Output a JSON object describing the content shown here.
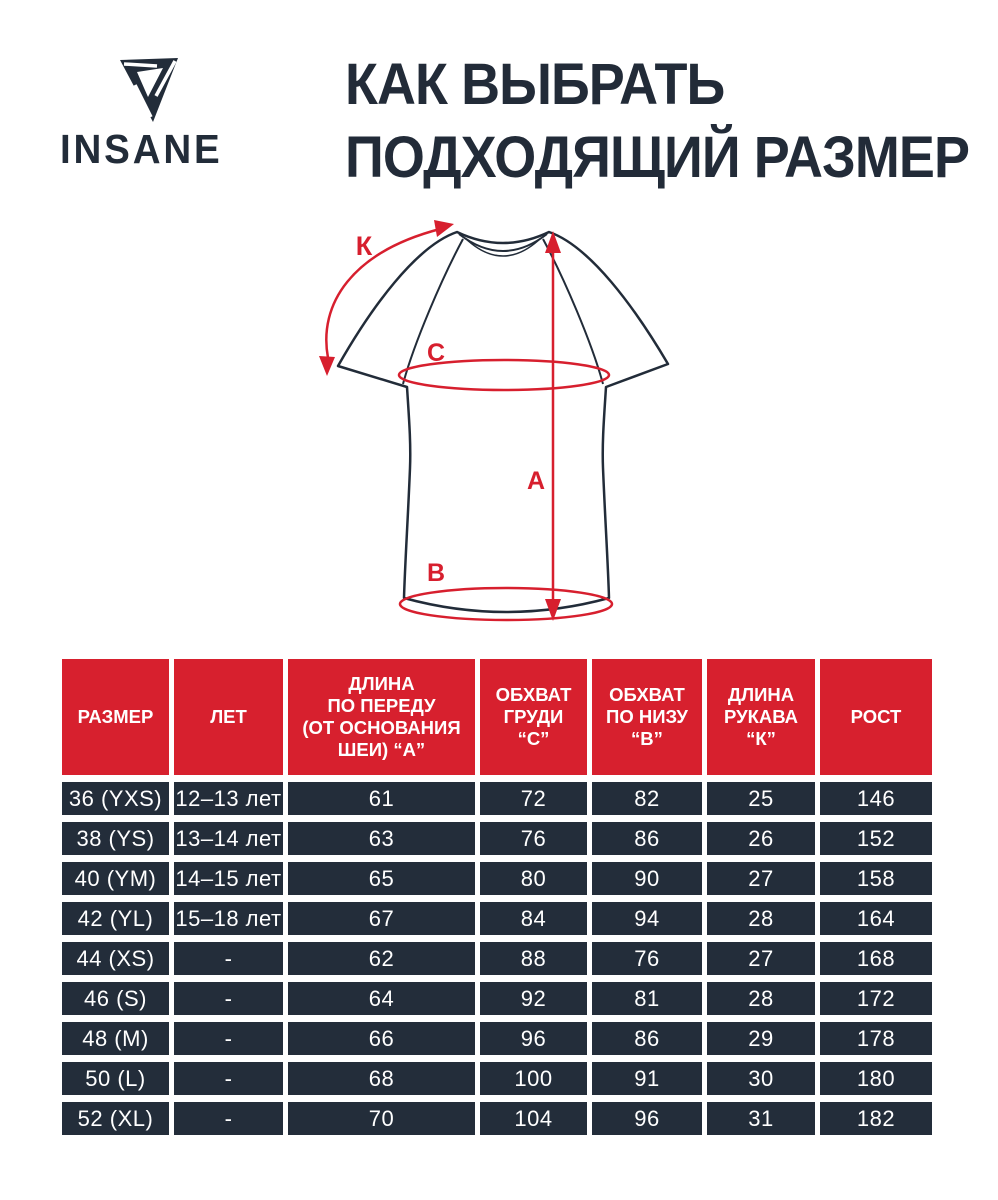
{
  "brand": {
    "name": "INSANE"
  },
  "title": {
    "line1": "КАК ВЫБРАТЬ",
    "line2": "ПОДХОДЯЩИЙ РАЗМЕР"
  },
  "diagram": {
    "labels": {
      "sleeve_k": "К",
      "chest_c": "С",
      "front_length_a": "А",
      "bottom_b": "В"
    }
  },
  "colors": {
    "accent_red": "#d7202e",
    "dark_navy": "#232d3a",
    "background": "#ffffff",
    "text_white": "#ffffff"
  },
  "size_table": {
    "headers": [
      "РАЗМЕР",
      "ЛЕТ",
      "ДЛИНА\nПО ПЕРЕДУ\n(ОТ ОСНОВАНИЯ\nШЕИ) “А”",
      "ОБХВАТ\nГРУДИ\n“С”",
      "ОБХВАТ\nПО НИЗУ\n“В”",
      "ДЛИНА\nРУКАВА\n“К”",
      "РОСТ"
    ],
    "rows": [
      [
        "36 (YXS)",
        "12–13 лет",
        "61",
        "72",
        "82",
        "25",
        "146"
      ],
      [
        "38 (YS)",
        "13–14 лет",
        "63",
        "76",
        "86",
        "26",
        "152"
      ],
      [
        "40 (YM)",
        "14–15 лет",
        "65",
        "80",
        "90",
        "27",
        "158"
      ],
      [
        "42 (YL)",
        "15–18 лет",
        "67",
        "84",
        "94",
        "28",
        "164"
      ],
      [
        "44 (XS)",
        "-",
        "62",
        "88",
        "76",
        "27",
        "168"
      ],
      [
        "46 (S)",
        "-",
        "64",
        "92",
        "81",
        "28",
        "172"
      ],
      [
        "48 (M)",
        "-",
        "66",
        "96",
        "86",
        "29",
        "178"
      ],
      [
        "50 (L)",
        "-",
        "68",
        "100",
        "91",
        "30",
        "180"
      ],
      [
        "52 (XL)",
        "-",
        "70",
        "104",
        "96",
        "31",
        "182"
      ]
    ]
  }
}
